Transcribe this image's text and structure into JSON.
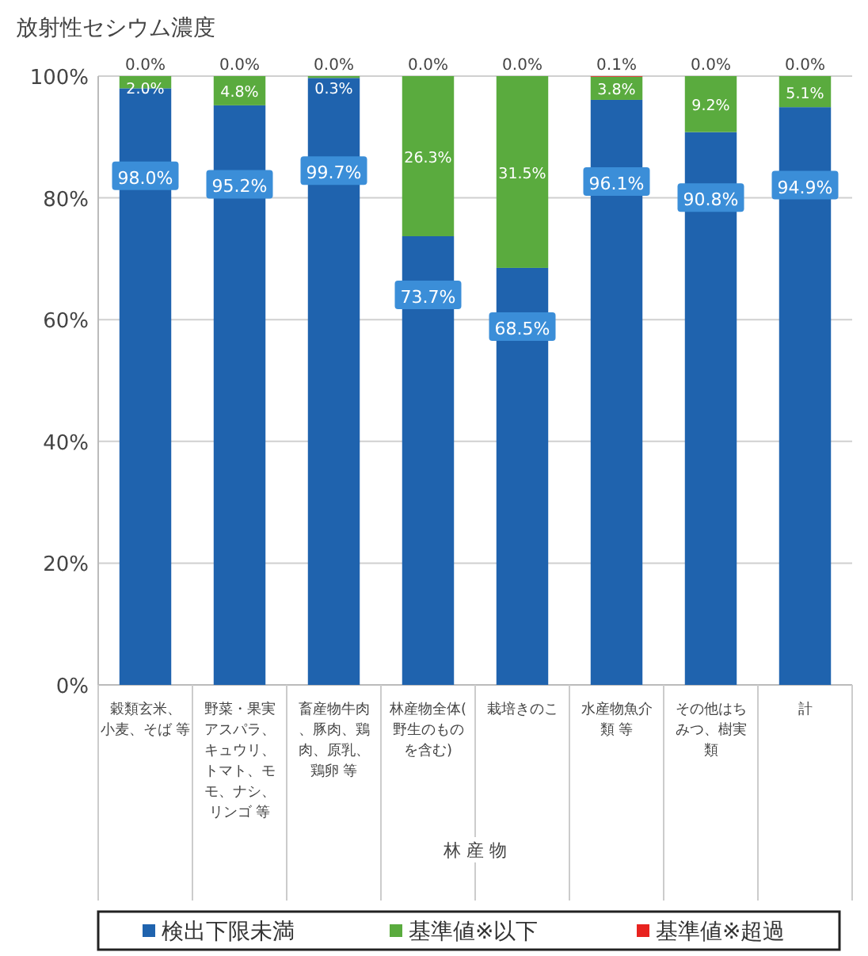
{
  "chart_data": {
    "type": "bar",
    "stacked": true,
    "title": "放射性セシウム濃度",
    "categories": [
      "穀類玄米、小麦、そば 等",
      "野菜・果実アスパラ、キュウリ、トマト、モモ、ナシ、リンゴ 等",
      "畜産物牛肉、豚肉、鶏肉、原乳、鶏卵 等",
      "林産物全体(野生のものを含む)",
      "栽培きのこ",
      "水産物魚介類 等",
      "その他はちみつ、樹実類",
      "計"
    ],
    "series": [
      {
        "name": "検出下限未満",
        "color": "#1f63ae",
        "values": [
          98.0,
          95.2,
          99.7,
          73.7,
          68.5,
          96.1,
          90.8,
          94.9
        ],
        "value_labels": [
          "98.0%",
          "95.2%",
          "99.7%",
          "73.7%",
          "68.5%",
          "96.1%",
          "90.8%",
          "94.9%"
        ]
      },
      {
        "name": "基準値※以下",
        "color": "#5aab3e",
        "values": [
          2.0,
          4.8,
          0.3,
          26.3,
          31.5,
          3.8,
          9.2,
          5.1
        ],
        "value_labels": [
          "2.0%",
          "4.8%",
          "0.3%",
          "26.3%",
          "31.5%",
          "3.8%",
          "9.2%",
          "5.1%"
        ]
      },
      {
        "name": "基準値※超過",
        "color": "#e8231f",
        "values": [
          0.0,
          0.0,
          0.0,
          0.0,
          0.0,
          0.1,
          0.0,
          0.0
        ],
        "value_labels": [
          "0.0%",
          "0.0%",
          "0.0%",
          "0.0%",
          "0.0%",
          "0.1%",
          "0.0%",
          "0.0%"
        ]
      }
    ],
    "ylim": [
      0,
      100
    ],
    "yticks": [
      {
        "value": 0,
        "label": "0%"
      },
      {
        "value": 20,
        "label": "20%"
      },
      {
        "value": 40,
        "label": "40%"
      },
      {
        "value": 60,
        "label": "60%"
      },
      {
        "value": 80,
        "label": "80%"
      },
      {
        "value": 100,
        "label": "100%"
      }
    ],
    "grid": "y",
    "legend": "bottom",
    "annotations": [
      "林 産 物"
    ]
  }
}
